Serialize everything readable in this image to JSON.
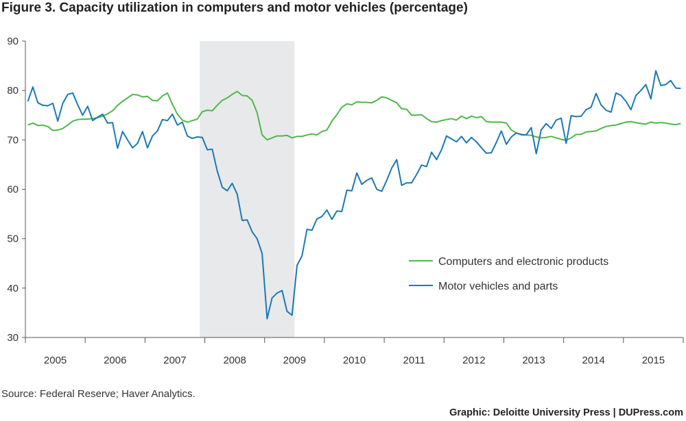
{
  "chart_data": {
    "type": "line",
    "title": "Figure 3. Capacity utilization in computers and motor vehicles (percentage)",
    "ylim": [
      30,
      90
    ],
    "yticks": [
      30,
      40,
      50,
      60,
      70,
      80,
      90
    ],
    "xlim": [
      "2005-01",
      "2015-12"
    ],
    "xtick_labels": [
      "2005",
      "2006",
      "2007",
      "2008",
      "2009",
      "2010",
      "2011",
      "2012",
      "2013",
      "2014",
      "2015"
    ],
    "shaded_region": {
      "start": "2007-12",
      "end": "2009-06"
    },
    "legend_position": "lower-right",
    "grid": false,
    "start": "2005-01",
    "series": [
      {
        "name": "Computers and electronic products",
        "color": "#4db848",
        "values": [
          73.0,
          73.4,
          72.9,
          73.0,
          72.7,
          71.9,
          72.0,
          72.3,
          73.0,
          73.8,
          74.1,
          74.2,
          74.2,
          74.3,
          74.5,
          74.8,
          75.3,
          75.9,
          77.0,
          77.8,
          78.5,
          79.2,
          79.1,
          78.7,
          78.8,
          78.0,
          77.9,
          78.9,
          79.5,
          77.2,
          75.2,
          74.0,
          73.6,
          73.9,
          74.2,
          75.7,
          76.0,
          75.9,
          77.0,
          78.0,
          78.5,
          79.2,
          79.8,
          79.0,
          78.9,
          78.0,
          75.5,
          71.0,
          70.0,
          70.4,
          70.8,
          70.8,
          70.9,
          70.4,
          70.7,
          70.7,
          71.0,
          71.2,
          71.0,
          71.7,
          72.0,
          73.8,
          75.1,
          76.6,
          77.3,
          77.1,
          77.7,
          77.6,
          77.6,
          77.5,
          78.0,
          78.7,
          78.5,
          78.0,
          77.5,
          76.3,
          76.2,
          75.0,
          75.0,
          75.1,
          74.3,
          73.7,
          73.6,
          73.9,
          74.1,
          74.3,
          74.0,
          74.8,
          74.3,
          74.8,
          74.5,
          74.7,
          73.7,
          73.6,
          73.6,
          73.6,
          73.4,
          72.0,
          71.4,
          71.0,
          71.0,
          70.9,
          70.6,
          70.4,
          70.5,
          70.7,
          70.4,
          70.1,
          69.9,
          70.4,
          71.1,
          71.1,
          71.6,
          71.7,
          71.8,
          72.3,
          72.7,
          72.9,
          73.0,
          73.3,
          73.6,
          73.7,
          73.5,
          73.3,
          73.2,
          73.6,
          73.4,
          73.5,
          73.4,
          73.2,
          73.1,
          73.3
        ]
      },
      {
        "name": "Motor vehicles and parts",
        "color": "#1a78b4",
        "values": [
          77.8,
          80.7,
          77.5,
          77.0,
          76.9,
          77.4,
          73.8,
          77.4,
          79.2,
          79.5,
          77.1,
          75.0,
          76.8,
          73.9,
          74.6,
          75.2,
          73.4,
          73.5,
          68.3,
          71.7,
          70.0,
          68.4,
          69.3,
          71.7,
          68.4,
          70.8,
          71.8,
          74.1,
          73.9,
          75.2,
          73.0,
          73.6,
          70.8,
          70.3,
          70.6,
          70.5,
          68.0,
          68.1,
          63.7,
          60.4,
          59.7,
          61.2,
          59.0,
          53.7,
          53.8,
          51.4,
          50.0,
          47.0,
          33.8,
          38.0,
          39.0,
          39.5,
          35.3,
          34.5,
          44.6,
          46.5,
          51.9,
          51.7,
          54.0,
          54.5,
          55.8,
          53.9,
          55.6,
          55.5,
          59.8,
          59.7,
          63.3,
          61.0,
          61.8,
          62.3,
          60.0,
          59.6,
          61.8,
          64.3,
          66.0,
          60.8,
          61.3,
          61.3,
          63.0,
          64.9,
          64.6,
          67.5,
          66.0,
          68.0,
          70.8,
          70.2,
          69.6,
          70.7,
          69.4,
          70.5,
          69.6,
          68.4,
          67.3,
          67.4,
          69.5,
          71.8,
          69.1,
          70.6,
          71.4,
          71.1,
          71.0,
          72.5,
          67.2,
          72.0,
          73.3,
          72.3,
          74.0,
          74.4,
          69.3,
          74.9,
          74.7,
          74.8,
          76.1,
          76.6,
          79.4,
          77.1,
          76.0,
          75.6,
          79.5,
          79.0,
          77.8,
          76.1,
          79.0,
          80.0,
          81.2,
          78.3,
          84.0,
          81.0,
          81.2,
          82.0,
          80.5,
          80.4
        ]
      }
    ]
  },
  "source_text": "Source: Federal Reserve; Haver Analytics.",
  "credit_text": "Graphic: Deloitte University Press  |  DUPress.com"
}
